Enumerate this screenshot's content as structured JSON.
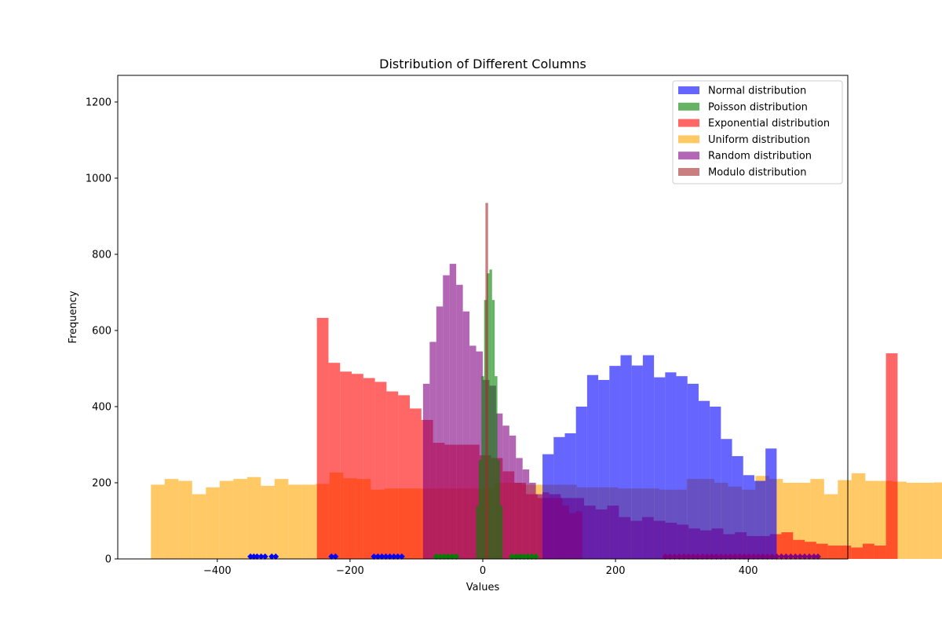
{
  "chart_data": {
    "type": "histogram",
    "title": "Distribution of Different Columns",
    "xlabel": "Values",
    "ylabel": "Frequency",
    "xlim": [
      -550,
      550
    ],
    "ylim": [
      0,
      1270
    ],
    "xticks": [
      -400,
      -200,
      0,
      200,
      400
    ],
    "xtick_labels": [
      "−400",
      "−200",
      "0",
      "200",
      "400"
    ],
    "yticks": [
      0,
      200,
      400,
      600,
      800,
      1000,
      1200
    ],
    "ytick_labels": [
      "0",
      "200",
      "400",
      "600",
      "800",
      "1000",
      "1200"
    ],
    "grid": false,
    "legend_position": "upper right",
    "series": [
      {
        "name": "Uniform distribution",
        "color": "#FFA500",
        "opacity": 0.6,
        "bins": {
          "start": -500,
          "width": 20.7,
          "counts": [
            195,
            210,
            205,
            170,
            188,
            205,
            210,
            215,
            192,
            210,
            195,
            195,
            197,
            227,
            212,
            210,
            182,
            185,
            185,
            185,
            185,
            185,
            185,
            185,
            185,
            200,
            200,
            195,
            195,
            195,
            195,
            188,
            188,
            188,
            185,
            185,
            185,
            182,
            182,
            210,
            210,
            200,
            190,
            182,
            218,
            210,
            200,
            200,
            210,
            170,
            207,
            225,
            205,
            205,
            203,
            200,
            200,
            201,
            202,
            204,
            185,
            200,
            200,
            203,
            210,
            212,
            232,
            195,
            195,
            195
          ]
        }
      },
      {
        "name": "Exponential distribution",
        "color": "#FF0000",
        "opacity": 0.6,
        "bins": {
          "start": -250,
          "width": 17.5,
          "counts": [
            633,
            515,
            492,
            486,
            475,
            465,
            440,
            430,
            395,
            365,
            305,
            300,
            300,
            300,
            272,
            265,
            230,
            200,
            170,
            160,
            170,
            160,
            160,
            140,
            130,
            140,
            110,
            100,
            110,
            100,
            95,
            90,
            80,
            75,
            80,
            65,
            70,
            60,
            60,
            65,
            70,
            50,
            45,
            40,
            35,
            35,
            30,
            40,
            35,
            540
          ]
        }
      },
      {
        "name": "Normal distribution",
        "color": "#0000FF",
        "opacity": 0.6,
        "bins": {
          "start": 90,
          "width": 16.8,
          "counts": [
            275,
            320,
            330,
            400,
            483,
            470,
            507,
            535,
            508,
            535,
            477,
            490,
            480,
            460,
            415,
            400,
            315,
            270,
            220,
            205,
            290
          ]
        }
      },
      {
        "name": "Random distribution",
        "color": "#800080",
        "opacity": 0.6,
        "bins": {
          "start": -90,
          "width": 10,
          "counts": [
            460,
            570,
            663,
            745,
            775,
            720,
            650,
            560,
            545,
            470,
            455,
            382,
            350,
            324,
            265,
            235,
            200,
            170,
            175,
            160,
            160,
            140,
            120,
            125
          ]
        }
      },
      {
        "name": "Poisson distribution",
        "color": "#008000",
        "opacity": 0.6,
        "bins": {
          "start": -10,
          "width": 4,
          "counts": [
            140,
            260,
            480,
            680,
            750,
            760,
            680,
            480,
            260,
            140
          ]
        }
      },
      {
        "name": "Modulo distribution",
        "color": "#A52A2A",
        "opacity": 0.6,
        "bins": {
          "start": 4,
          "width": 4,
          "counts": [
            935
          ]
        }
      }
    ],
    "rug_points": {
      "marker": "diamond",
      "groups": [
        {
          "color": "#0000FF",
          "x": [
            -350,
            -345,
            -340,
            -334,
            -328,
            -318,
            -312,
            -228,
            -222,
            -164,
            -158,
            -152,
            -146,
            -140,
            -134,
            -128,
            -122
          ]
        },
        {
          "color": "#008000",
          "x": [
            -70,
            -64,
            -58,
            -52,
            -46,
            -40,
            44,
            50,
            56,
            62,
            68,
            74,
            80
          ]
        },
        {
          "color": "#800080",
          "x": [
            275,
            282,
            289,
            296,
            303,
            310,
            317,
            324,
            331,
            338,
            345,
            352,
            359,
            366,
            373,
            380,
            387,
            394,
            401,
            408,
            415,
            422,
            429,
            436,
            443,
            450,
            457,
            464,
            471,
            478,
            485,
            492,
            499,
            505
          ]
        }
      ]
    },
    "legend_order": [
      "Normal distribution",
      "Poisson distribution",
      "Exponential distribution",
      "Uniform distribution",
      "Random distribution",
      "Modulo distribution"
    ]
  }
}
